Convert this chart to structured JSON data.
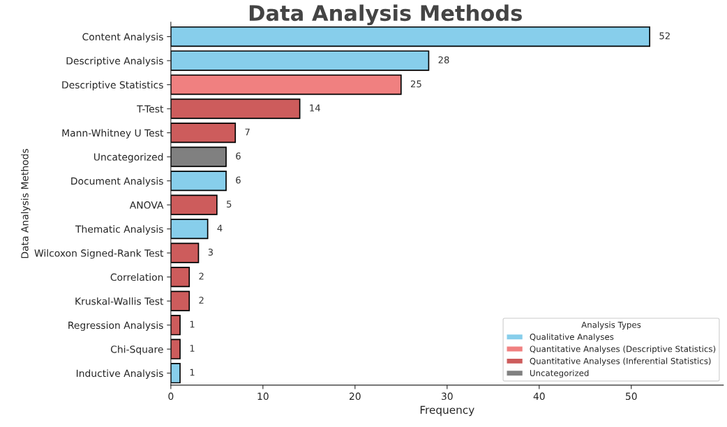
{
  "chart_data": {
    "type": "bar",
    "orientation": "horizontal",
    "title": "Data Analysis Methods",
    "xlabel": "Frequency",
    "ylabel": "Data Analysis Methods",
    "legend_title": "Analysis Types",
    "legend": "bottom right",
    "data_labels": true,
    "grid": false,
    "categories": [
      "Content Analysis",
      "Descriptive Analysis",
      "Descriptive Statistics",
      "T-Test",
      "Mann-Whitney U Test",
      "Uncategorized",
      "Document Analysis",
      "ANOVA",
      "Thematic Analysis",
      "Wilcoxon Signed-Rank Test",
      "Correlation",
      "Kruskal-Wallis Test",
      "Regression Analysis",
      "Chi-Square",
      "Inductive Analysis"
    ],
    "series": [
      {
        "name": "Qualitative Analyses",
        "color": "#87ceeb",
        "values": [
          52,
          28,
          null,
          null,
          null,
          null,
          6,
          null,
          4,
          null,
          null,
          null,
          null,
          null,
          1
        ]
      },
      {
        "name": "Quantitative Analyses (Descriptive Statistics)",
        "color": "#f08080",
        "values": [
          null,
          null,
          25,
          null,
          null,
          null,
          null,
          null,
          null,
          null,
          null,
          null,
          null,
          null,
          null
        ]
      },
      {
        "name": "Quantitative Analyses (Inferential Statistics)",
        "color": "#cd5c5c",
        "values": [
          null,
          null,
          null,
          14,
          7,
          null,
          null,
          5,
          null,
          3,
          2,
          2,
          1,
          1,
          null
        ]
      },
      {
        "name": "Uncategorized",
        "color": "#808080",
        "values": [
          null,
          null,
          null,
          null,
          null,
          6,
          null,
          null,
          null,
          null,
          null,
          null,
          null,
          null,
          null
        ]
      }
    ],
    "xlim": [
      0,
      60
    ],
    "xticks": [
      0,
      10,
      20,
      30,
      40,
      50
    ]
  }
}
